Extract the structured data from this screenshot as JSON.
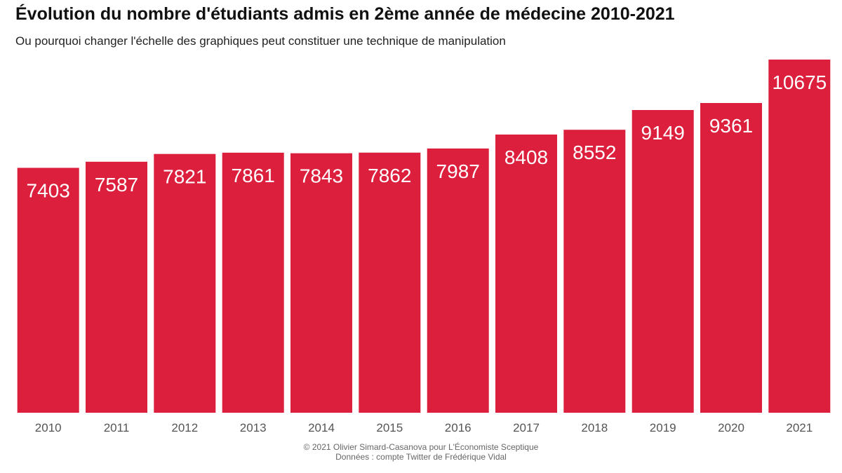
{
  "header": {
    "title": "Évolution du nombre d'étudiants admis en 2ème année de médecine 2010-2021",
    "subtitle": "Ou pourquoi changer l'échelle des graphiques peut constituer une technique de manipulation"
  },
  "footer": {
    "credit": "© 2021 Olivier Simard-Casanova pour L'Économiste Sceptique",
    "source": "Données : compte Twitter de Frédérique Vidal"
  },
  "colors": {
    "bar": "#dc1f3c",
    "bar_label": "#ffffff",
    "tick_label": "#555555"
  },
  "chart_data": {
    "type": "bar",
    "title": "Évolution du nombre d'étudiants admis en 2ème année de médecine 2010-2021",
    "subtitle": "Ou pourquoi changer l'échelle des graphiques peut constituer une technique de manipulation",
    "xlabel": "",
    "ylabel": "",
    "categories": [
      "2010",
      "2011",
      "2012",
      "2013",
      "2014",
      "2015",
      "2016",
      "2017",
      "2018",
      "2019",
      "2020",
      "2021"
    ],
    "values": [
      7403,
      7587,
      7821,
      7861,
      7843,
      7862,
      7987,
      8408,
      8552,
      9149,
      9361,
      10675
    ],
    "ylim": [
      0,
      10675
    ],
    "grid": false,
    "legend": "none",
    "data_labels": true
  }
}
